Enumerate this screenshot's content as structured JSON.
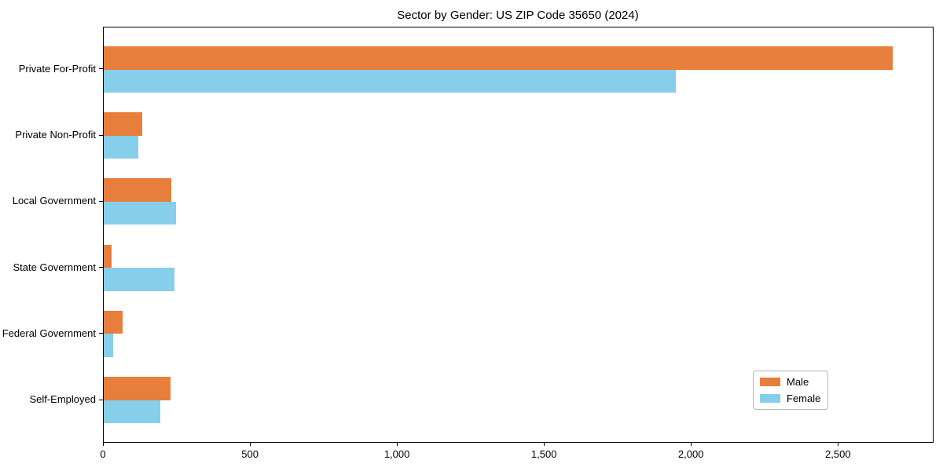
{
  "title": "Sector by Gender: US ZIP Code 35650 (2024)",
  "chart_data": {
    "type": "bar",
    "orientation": "horizontal",
    "title": "Sector by Gender: US ZIP Code 35650 (2024)",
    "categories": [
      "Private For-Profit",
      "Private Non-Profit",
      "Local Government",
      "State Government",
      "Federal Government",
      "Self-Employed"
    ],
    "series": [
      {
        "name": "Male",
        "color": "#E87E3B",
        "values": [
          2684,
          131,
          229,
          27,
          64,
          228
        ]
      },
      {
        "name": "Female",
        "color": "#87CEEB",
        "values": [
          1947,
          118,
          247,
          241,
          31,
          191
        ]
      }
    ],
    "xlabel": "",
    "ylabel": "",
    "xlim": [
      0,
      2820
    ],
    "xticks": [
      0,
      500,
      1000,
      1500,
      2000,
      2500
    ],
    "xtick_labels": [
      "0",
      "500",
      "1,000",
      "1,500",
      "2,000",
      "2,500"
    ],
    "grid": false,
    "legend_position": "lower right",
    "frame": true
  }
}
